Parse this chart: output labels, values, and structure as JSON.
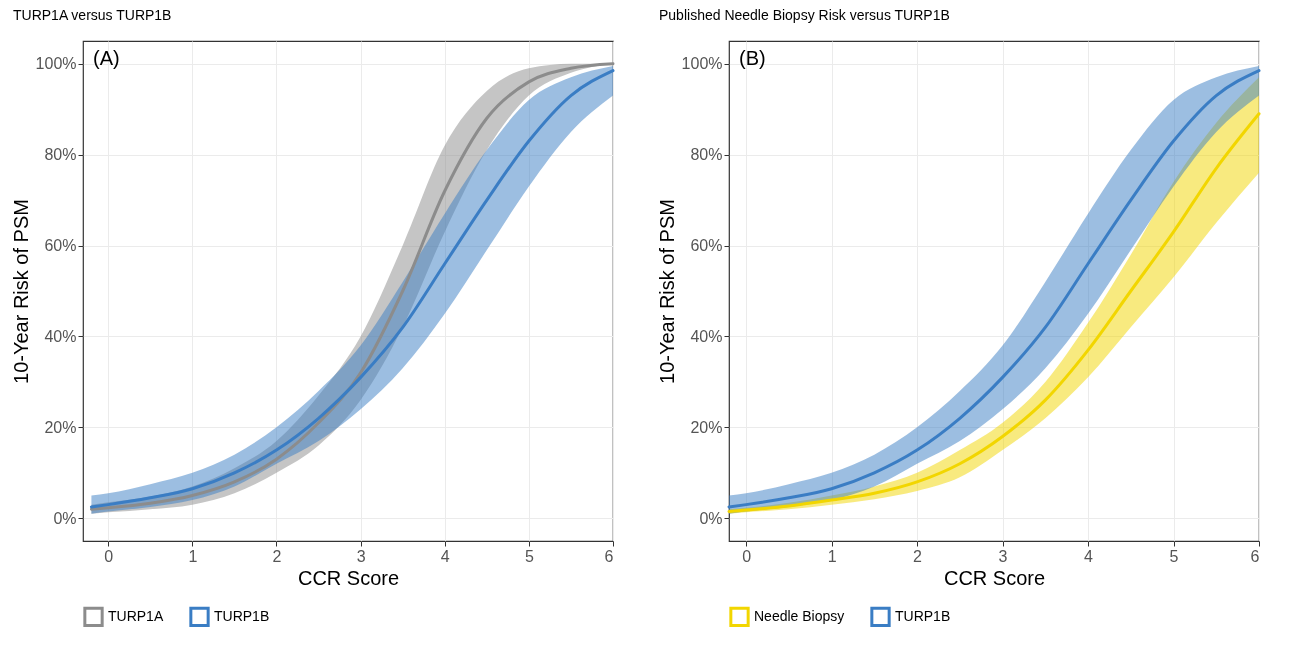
{
  "chart_data": [
    {
      "type": "line",
      "title": "TURP1A versus TURP1B",
      "xlabel": "CCR Score",
      "ylabel": "10-Year Risk of PSM",
      "annotations": [
        "(A)"
      ],
      "xlim": [
        -0.3,
        6
      ],
      "xticks": [
        0,
        1,
        2,
        3,
        4,
        5,
        6
      ],
      "ylim": [
        -5,
        105
      ],
      "yticks": [
        {
          "value": 0,
          "label": "0%"
        },
        {
          "value": 20,
          "label": "20%"
        },
        {
          "value": 40,
          "label": "40%"
        },
        {
          "value": 60,
          "label": "60%"
        },
        {
          "value": 80,
          "label": "80%"
        },
        {
          "value": 100,
          "label": "100%"
        }
      ],
      "grid": true,
      "legend": "bottom",
      "x": [
        -0.2,
        0,
        0.5,
        1,
        1.5,
        2,
        2.5,
        3,
        3.5,
        4,
        4.5,
        5,
        5.5,
        6
      ],
      "series": [
        {
          "name": "TURP1A",
          "color": "#8c8c8c",
          "values": [
            2,
            2.3,
            3.3,
            5,
            8,
            13,
            21,
            32,
            50,
            72,
            88,
            96,
            99,
            100
          ],
          "lower": [
            1,
            1.3,
            2,
            3,
            5.5,
            10,
            16,
            26,
            42,
            63,
            81,
            93,
            98,
            100
          ],
          "upper": [
            3,
            3.5,
            4.8,
            7,
            11,
            17,
            27,
            40,
            60,
            82,
            94,
            99,
            100,
            100
          ]
        },
        {
          "name": "TURP1B",
          "color": "#3a7dc4",
          "values": [
            2.5,
            3,
            4.5,
            6.5,
            10,
            15,
            22,
            31,
            42,
            56,
            70,
            83,
            93,
            98.5
          ],
          "lower": [
            1,
            1.5,
            2.5,
            4,
            7,
            12,
            17,
            24,
            33,
            45,
            59,
            73,
            85,
            93
          ],
          "upper": [
            5,
            5.5,
            7.5,
            10,
            14,
            20,
            28,
            38,
            52,
            67,
            81,
            92,
            97,
            99.5
          ]
        }
      ]
    },
    {
      "type": "line",
      "title": "Published Needle Biopsy Risk versus TURP1B",
      "xlabel": "CCR Score",
      "ylabel": "10-Year Risk of PSM",
      "annotations": [
        "(B)"
      ],
      "xlim": [
        -0.2,
        6
      ],
      "xticks": [
        0,
        1,
        2,
        3,
        4,
        5,
        6
      ],
      "ylim": [
        -5,
        105
      ],
      "yticks": [
        {
          "value": 0,
          "label": "0%"
        },
        {
          "value": 20,
          "label": "20%"
        },
        {
          "value": 40,
          "label": "40%"
        },
        {
          "value": 60,
          "label": "60%"
        },
        {
          "value": 80,
          "label": "80%"
        },
        {
          "value": 100,
          "label": "100%"
        }
      ],
      "grid": true,
      "legend": "bottom",
      "x": [
        -0.2,
        0,
        0.5,
        1,
        1.5,
        2,
        2.5,
        3,
        3.5,
        4,
        4.5,
        5,
        5.5,
        6
      ],
      "series": [
        {
          "name": "Needle Biopsy",
          "color": "#f2d600",
          "values": [
            1.5,
            1.8,
            2.7,
            4,
            5.5,
            8,
            12,
            18,
            26,
            37,
            50,
            63,
            77,
            89
          ],
          "lower": [
            1,
            1.3,
            2,
            3,
            4.2,
            6,
            9,
            15,
            22,
            31,
            42,
            53,
            65,
            76
          ],
          "upper": [
            2,
            2.3,
            3.4,
            5,
            7,
            10,
            15,
            21,
            30,
            43,
            58,
            74,
            87,
            97
          ]
        },
        {
          "name": "TURP1B",
          "color": "#3a7dc4",
          "values": [
            2.5,
            3,
            4.5,
            6.5,
            10,
            15,
            22,
            31,
            42,
            56,
            70,
            83,
            93,
            98.5
          ],
          "lower": [
            1,
            1.5,
            2.5,
            4,
            7,
            12,
            17,
            24,
            33,
            45,
            59,
            73,
            85,
            93
          ],
          "upper": [
            5,
            5.5,
            7.5,
            10,
            14,
            20,
            28,
            38,
            52,
            67,
            81,
            92,
            97,
            99.5
          ]
        }
      ]
    }
  ]
}
